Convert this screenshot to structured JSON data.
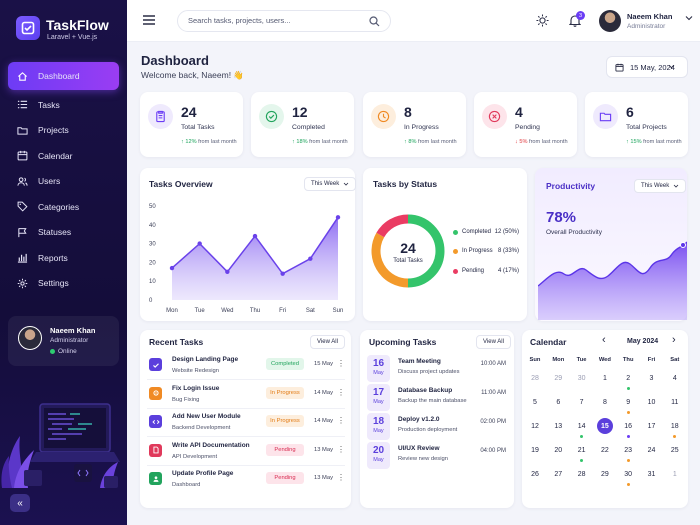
{
  "app": {
    "name": "TaskFlow",
    "subtitle": "Laravel + Vue.js"
  },
  "sidebar": {
    "items": [
      {
        "label": "Dashboard",
        "icon": "home-icon",
        "active": true
      },
      {
        "label": "Tasks",
        "icon": "list-icon"
      },
      {
        "label": "Projects",
        "icon": "folder-icon"
      },
      {
        "label": "Calendar",
        "icon": "calendar-icon"
      },
      {
        "label": "Users",
        "icon": "users-icon"
      },
      {
        "label": "Categories",
        "icon": "tag-icon"
      },
      {
        "label": "Statuses",
        "icon": "flag-icon"
      },
      {
        "label": "Reports",
        "icon": "bar-chart-icon"
      },
      {
        "label": "Settings",
        "icon": "gear-icon"
      }
    ],
    "user": {
      "name": "Naeem Khan",
      "role": "Administrator",
      "status": "Online"
    },
    "collapse_label": "«"
  },
  "header": {
    "search_placeholder": "Search tasks, projects, users...",
    "notification_count": "3",
    "user": {
      "name": "Naeem Khan",
      "role": "Administrator"
    }
  },
  "page": {
    "title": "Dashboard",
    "subtitle": "Welcome back, Naeem! 👋",
    "date": "15 May, 2024"
  },
  "stats": [
    {
      "value": "24",
      "label": "Total Tasks",
      "trend": "12%",
      "trend_dir": "up",
      "trend_text": "from last month",
      "icon": "clipboard-icon",
      "color": "#6b3df5",
      "bg": "#efeafd"
    },
    {
      "value": "12",
      "label": "Completed",
      "trend": "18%",
      "trend_dir": "up",
      "trend_text": "from last month",
      "icon": "check-circle-icon",
      "color": "#22a45d",
      "bg": "#e4f6ec"
    },
    {
      "value": "8",
      "label": "In Progress",
      "trend": "8%",
      "trend_dir": "up",
      "trend_text": "from last month",
      "icon": "clock-icon",
      "color": "#f08a24",
      "bg": "#fdeedd"
    },
    {
      "value": "4",
      "label": "Pending",
      "trend": "5%",
      "trend_dir": "down",
      "trend_text": "from last month",
      "icon": "x-circle-icon",
      "color": "#e0395b",
      "bg": "#fde4ea"
    },
    {
      "value": "6",
      "label": "Total Projects",
      "trend": "15%",
      "trend_dir": "up",
      "trend_text": "from last month",
      "icon": "folder-icon",
      "color": "#6b3df5",
      "bg": "#efeafd"
    }
  ],
  "tasks_overview": {
    "title": "Tasks Overview",
    "period": "This Week",
    "chart_data": {
      "type": "area",
      "categories": [
        "Mon",
        "Tue",
        "Wed",
        "Thu",
        "Fri",
        "Sat",
        "Sun"
      ],
      "values": [
        17,
        30,
        15,
        34,
        14,
        22,
        44
      ],
      "yticks": [
        0,
        10,
        20,
        30,
        40,
        50
      ],
      "ylim": [
        0,
        50
      ],
      "color": "#7b55f0"
    }
  },
  "tasks_by_status": {
    "title": "Tasks by Status",
    "center_value": "24",
    "center_label": "Total Tasks",
    "chart_data": {
      "type": "pie",
      "slices": [
        {
          "name": "Completed",
          "value": 12,
          "label": "12 (50%)",
          "color": "#34c46b"
        },
        {
          "name": "In Progress",
          "value": 8,
          "label": "8 (33%)",
          "color": "#f39a2b"
        },
        {
          "name": "Pending",
          "value": 4,
          "label": "4 (17%)",
          "color": "#ea3c63"
        }
      ]
    }
  },
  "productivity": {
    "title": "Productivity",
    "period": "This Week",
    "value": "78%",
    "label": "Overall Productivity"
  },
  "recent_tasks": {
    "title": "Recent Tasks",
    "view_all": "View All",
    "rows": [
      {
        "name": "Design Landing Page",
        "project": "Website Redesign",
        "status": "Completed",
        "date": "15 May",
        "icon_color": "#5b3fdc",
        "icon_bg": "#5b3fdc",
        "badge_color": "#22a45d",
        "badge_bg": "#e2f6ea"
      },
      {
        "name": "Fix Login Issue",
        "project": "Bug Fixing",
        "status": "In Progress",
        "date": "14 May",
        "icon_color": "#f08a24",
        "icon_bg": "#f08a24",
        "badge_color": "#e27c16",
        "badge_bg": "#fdeedd"
      },
      {
        "name": "Add New User Module",
        "project": "Backend Development",
        "status": "In Progress",
        "date": "14 May",
        "icon_color": "#5b3fdc",
        "icon_bg": "#5b3fdc",
        "badge_color": "#e27c16",
        "badge_bg": "#fdeedd"
      },
      {
        "name": "Write API Documentation",
        "project": "API Development",
        "status": "Pending",
        "date": "13 May",
        "icon_color": "#e0395b",
        "icon_bg": "#e0395b",
        "badge_color": "#d92d52",
        "badge_bg": "#fde4ea"
      },
      {
        "name": "Update Profile Page",
        "project": "Dashboard",
        "status": "Pending",
        "date": "13 May",
        "icon_color": "#22a45d",
        "icon_bg": "#22a45d",
        "badge_color": "#d92d52",
        "badge_bg": "#fde4ea"
      }
    ]
  },
  "upcoming_tasks": {
    "title": "Upcoming Tasks",
    "view_all": "View All",
    "rows": [
      {
        "day": "16",
        "month": "May",
        "title": "Team Meeting",
        "sub": "Discuss project updates",
        "time": "10:00 AM"
      },
      {
        "day": "17",
        "month": "May",
        "title": "Database Backup",
        "sub": "Backup the main database",
        "time": "11:00 AM"
      },
      {
        "day": "18",
        "month": "May",
        "title": "Deploy v1.2.0",
        "sub": "Production deployment",
        "time": "02:00 PM"
      },
      {
        "day": "20",
        "month": "May",
        "title": "UI/UX Review",
        "sub": "Review new design",
        "time": "04:00 PM"
      }
    ]
  },
  "calendar": {
    "title": "Calendar",
    "month": "May 2024",
    "prev": "‹",
    "next": "›",
    "weekdays": [
      "Sun",
      "Mon",
      "Tue",
      "Wed",
      "Thu",
      "Fri",
      "Sat"
    ],
    "weeks": [
      [
        {
          "d": "28",
          "m": true
        },
        {
          "d": "29",
          "m": true
        },
        {
          "d": "30",
          "m": true
        },
        {
          "d": "1"
        },
        {
          "d": "2",
          "dot": "#34c46b"
        },
        {
          "d": "3"
        },
        {
          "d": "4"
        }
      ],
      [
        {
          "d": "5"
        },
        {
          "d": "6"
        },
        {
          "d": "7"
        },
        {
          "d": "8"
        },
        {
          "d": "9",
          "dot": "#f39a2b"
        },
        {
          "d": "10"
        },
        {
          "d": "11"
        }
      ],
      [
        {
          "d": "12"
        },
        {
          "d": "13"
        },
        {
          "d": "14",
          "dot": "#34c46b"
        },
        {
          "d": "15",
          "today": true
        },
        {
          "d": "16",
          "dot": "#6b3df5"
        },
        {
          "d": "17"
        },
        {
          "d": "18",
          "dot": "#f39a2b"
        }
      ],
      [
        {
          "d": "19"
        },
        {
          "d": "20"
        },
        {
          "d": "21",
          "dot": "#34c46b"
        },
        {
          "d": "22"
        },
        {
          "d": "23",
          "dot": "#f39a2b"
        },
        {
          "d": "24"
        },
        {
          "d": "25"
        }
      ],
      [
        {
          "d": "26"
        },
        {
          "d": "27"
        },
        {
          "d": "28"
        },
        {
          "d": "29"
        },
        {
          "d": "30",
          "dot": "#f39a2b"
        },
        {
          "d": "31"
        },
        {
          "d": "1",
          "m": true
        }
      ]
    ],
    "today_color": "#5b3fdc"
  }
}
